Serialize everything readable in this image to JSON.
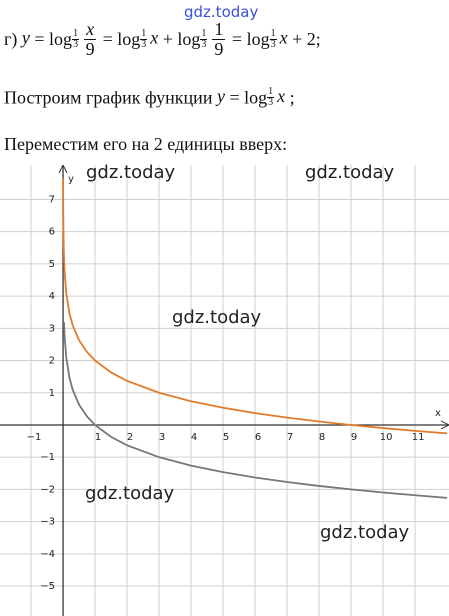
{
  "watermark": "gdz.today",
  "formula": {
    "label": "г)",
    "y": "y",
    "eq": "=",
    "log": "log",
    "base_num": "1",
    "base_den": "3",
    "x": "x",
    "nine": "9",
    "plus": "+",
    "one": "1",
    "two": "2",
    "end": ";"
  },
  "line2": {
    "text": "Построим график функции",
    "end": ";"
  },
  "line3": "Переместим его на 2 единицы вверх:",
  "chart_data": {
    "type": "line",
    "xlabel": "x",
    "ylabel": "y",
    "xlim": [
      -1.97,
      12.06
    ],
    "ylim": [
      -5.93,
      8.07
    ],
    "xticks": [
      {
        "value": -1,
        "label": "−1"
      },
      1,
      2,
      3,
      4,
      5,
      6,
      7,
      8,
      9,
      10,
      11
    ],
    "yticks": [
      {
        "value": -5,
        "label": "−5"
      },
      {
        "value": -4,
        "label": "−4"
      },
      {
        "value": -3,
        "label": "−3"
      },
      {
        "value": -2,
        "label": "−2"
      },
      {
        "value": -1,
        "label": "−1"
      },
      1,
      2,
      3,
      4,
      5,
      6,
      7
    ],
    "grid": true,
    "series": [
      {
        "color": "#777777",
        "x": [
          0.03,
          0.05,
          0.1,
          0.2,
          0.3,
          0.5,
          0.75,
          1,
          1.5,
          2,
          3,
          4,
          5,
          6,
          7,
          8,
          9,
          10,
          11,
          12
        ],
        "values": [
          3.192,
          2.727,
          2.096,
          1.465,
          1.096,
          0.631,
          0.262,
          0,
          -0.369,
          -0.631,
          -1,
          -1.262,
          -1.465,
          -1.631,
          -1.771,
          -1.893,
          -2,
          -2.096,
          -2.183,
          -2.262
        ]
      },
      {
        "color": "#e07b2a",
        "x": [
          0.002,
          0.005,
          0.01,
          0.02,
          0.03,
          0.05,
          0.1,
          0.2,
          0.3,
          0.5,
          0.75,
          1,
          1.5,
          2,
          3,
          4,
          5,
          6,
          7,
          8,
          9,
          10,
          11,
          12
        ],
        "values": [
          7.657,
          6.823,
          6.192,
          5.561,
          5.192,
          4.727,
          4.096,
          3.465,
          3.096,
          2.631,
          2.262,
          2,
          1.631,
          1.369,
          1,
          0.738,
          0.535,
          0.369,
          0.229,
          0.107,
          0,
          -0.096,
          -0.183,
          -0.262
        ]
      }
    ]
  }
}
